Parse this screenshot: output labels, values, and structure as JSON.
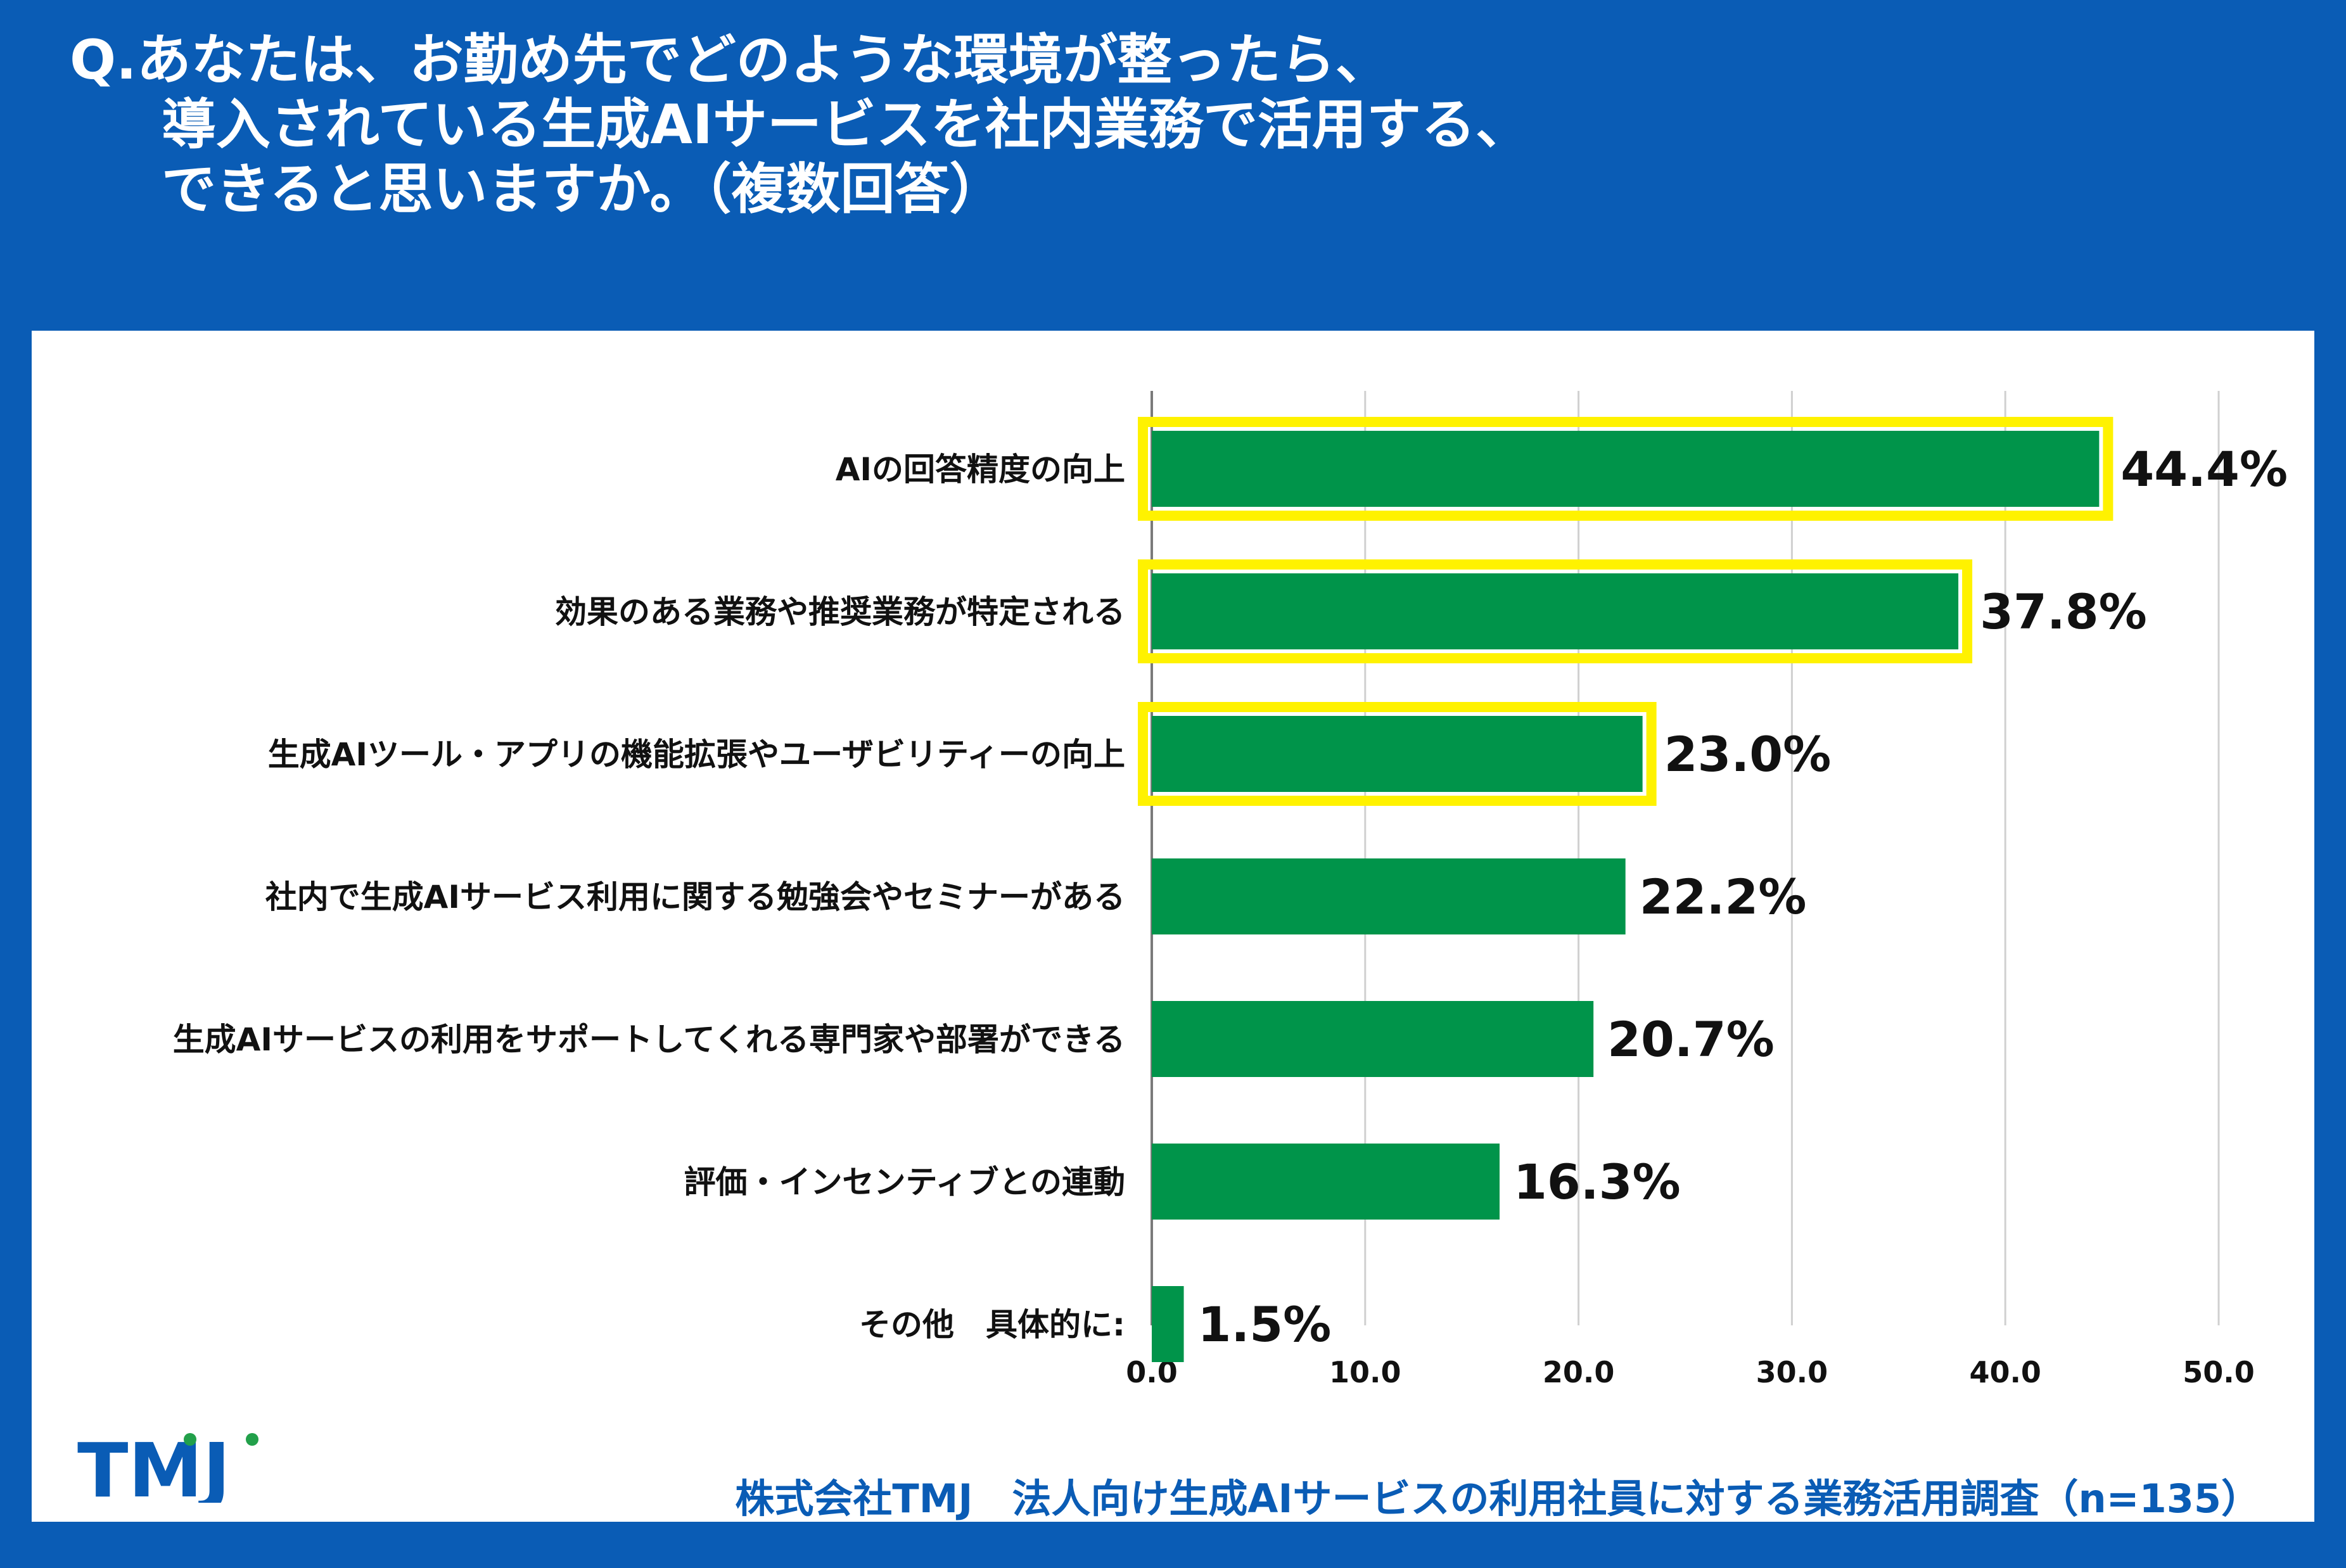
{
  "title": {
    "line1": "Q.あなたは、お勤め先でどのような環境が整ったら、",
    "line2": "導入されている生成AIサービスを社内業務で活用する、",
    "line3": "できると思いますか。（複数回答）"
  },
  "logo_text": "TMJ",
  "source": "株式会社TMJ　法人向け生成AIサービスの利用社員に対する業務活用調査（n=135）",
  "colors": {
    "background": "#0a5cb5",
    "panel": "#ffffff",
    "bar": "#00944a",
    "highlight": "#fff200",
    "grid": "#d0d0d0",
    "text": "#111111",
    "logo_blue": "#0a5cb5",
    "logo_green": "#22a04a"
  },
  "chart_data": {
    "type": "bar",
    "orientation": "horizontal",
    "categories": [
      "AIの回答精度の向上",
      "効果のある業務や推奨業務が特定される",
      "生成AIツール・アプリの機能拡張やユーザビリティーの向上",
      "社内で生成AIサービス利用に関する勉強会やセミナーがある",
      "生成AIサービスの利用をサポートしてくれる専門家や部署ができる",
      "評価・インセンティブとの連動",
      "その他　具体的に:"
    ],
    "values": [
      44.4,
      37.8,
      23.0,
      22.2,
      20.7,
      16.3,
      1.5
    ],
    "value_labels": [
      "44.4%",
      "37.8%",
      "23.0%",
      "22.2%",
      "20.7%",
      "16.3%",
      "1.5%"
    ],
    "highlighted": [
      true,
      true,
      true,
      false,
      false,
      false,
      false
    ],
    "xlim": [
      0,
      50
    ],
    "xticks": [
      "0.0",
      "10.0",
      "20.0",
      "30.0",
      "40.0",
      "50.0"
    ],
    "grid": true
  }
}
